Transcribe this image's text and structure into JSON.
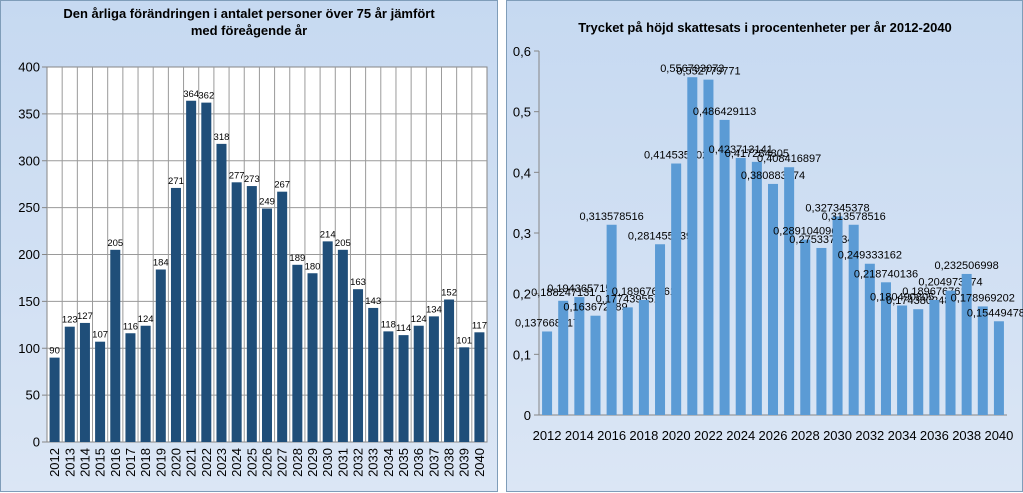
{
  "chart_data": [
    {
      "type": "bar",
      "title": "Den årliga förändringen i antalet personer över 75 år jämfört med föreågende år",
      "title_lines": [
        "Den årliga förändringen i antalet personer över 75 år jämfört",
        "med föreågende år"
      ],
      "categories": [
        "2012",
        "2013",
        "2014",
        "2015",
        "2016",
        "2017",
        "2018",
        "2019",
        "2020",
        "2021",
        "2022",
        "2023",
        "2024",
        "2025",
        "2026",
        "2027",
        "2028",
        "2029",
        "2030",
        "2031",
        "2032",
        "2033",
        "2034",
        "2035",
        "2036",
        "2037",
        "2038",
        "2039",
        "2040"
      ],
      "values": [
        90,
        123,
        127,
        107,
        205,
        116,
        124,
        184,
        271,
        364,
        362,
        318,
        277,
        273,
        249,
        267,
        189,
        180,
        214,
        205,
        163,
        143,
        118,
        114,
        124,
        134,
        152,
        101,
        117
      ],
      "ylim": [
        0,
        400
      ],
      "yticks": [
        "0",
        "50",
        "100",
        "150",
        "200",
        "250",
        "300",
        "350",
        "400"
      ],
      "bar_color": "#1f4e79",
      "grid": true,
      "xlabel": "",
      "ylabel": ""
    },
    {
      "type": "bar",
      "title": "Trycket på höjd skattesats i procentenheter per år 2012-2040",
      "categories": [
        "2012",
        "2013",
        "2014",
        "2015",
        "2016",
        "2017",
        "2018",
        "2019",
        "2020",
        "2021",
        "2022",
        "2023",
        "2024",
        "2025",
        "2026",
        "2027",
        "2028",
        "2029",
        "2030",
        "2031",
        "2032",
        "2033",
        "2034",
        "2035",
        "2036",
        "2037",
        "2038",
        "2039",
        "2040"
      ],
      "xtick_labels": [
        "2012",
        "2014",
        "2016",
        "2018",
        "2020",
        "2022",
        "2024",
        "2026",
        "2028",
        "2030",
        "2032",
        "2034",
        "2036",
        "2038",
        "2040"
      ],
      "values": [
        0.137668617,
        0.188247131,
        0.194365715,
        0.163672689,
        0.313578516,
        0.177439551,
        0.189676761,
        0.281455839,
        0.414535502,
        0.556793073,
        0.552779771,
        0.486429113,
        0.423713141,
        0.417284805,
        0.380883174,
        0.408416897,
        0.289104096,
        0.275337234,
        0.327345378,
        0.313578516,
        0.249333162,
        0.218740136,
        0.180490805,
        0.174380248,
        0.189676761,
        0.204973274,
        0.232506998,
        0.178969202,
        0.154494781
      ],
      "value_labels": [
        "0,137668617",
        "0,188247131",
        "0,194365715",
        "0,163672689",
        "0,313578516",
        "0,177439551",
        "0,189676761",
        "0,281455839",
        "0,414535502",
        "0,556793073",
        "0,552779771",
        "0,486429113",
        "0,423713141",
        "0,417284805",
        "0,380883174",
        "0,408416897",
        "0,289104096",
        "0,275337234",
        "0,327345378",
        "0,313578516",
        "0,249333162",
        "0,218740136",
        "0,180490805",
        "0,174380248",
        "0,189676761",
        "0,204973274",
        "0,232506998",
        "0,178969202",
        "0,154494781"
      ],
      "ylim": [
        0,
        0.6
      ],
      "yticks": [
        "0",
        "0,1",
        "0,2",
        "0,3",
        "0,4",
        "0,5",
        "0,6"
      ],
      "bar_color": "#5b9bd5",
      "grid": false,
      "xlabel": "",
      "ylabel": ""
    }
  ]
}
